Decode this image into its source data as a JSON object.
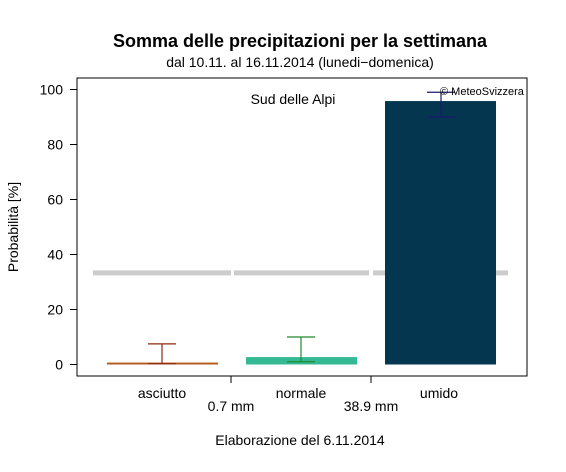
{
  "chart_data": {
    "type": "bar",
    "title": "Somma delle precipitazioni per la settimana",
    "subtitle": "dal 10.11. al 16.11.2014 (lunedi−domenica)",
    "region_label": "Sud delle Alpi",
    "copyright": "© MeteoSvizzera",
    "ylabel": "Probabilità [%]",
    "xlabel": "",
    "caption": "Elaborazione del 6.11.2014",
    "ylim": [
      0,
      100
    ],
    "yticks": [
      "0",
      "20",
      "40",
      "60",
      "80",
      "100"
    ],
    "categories": [
      "asciutto",
      "normale",
      "umido"
    ],
    "values": [
      0.7,
      2.7,
      95.8
    ],
    "error_low": [
      0.3,
      1.0,
      90.0
    ],
    "error_high": [
      7.5,
      10.0,
      99.0
    ],
    "climatology": 33.3,
    "thresholds": [
      "0.7 mm",
      "38.9 mm"
    ],
    "colors": {
      "asciutto": "#b5581f",
      "normale": "#35b995",
      "umido": "#053650",
      "err_asciutto": "#8b2a10",
      "err_normale": "#1e8a2e",
      "err_umido": "#1a1a6e",
      "climatology": "#cccccc"
    },
    "grid": false,
    "legend": "none"
  }
}
